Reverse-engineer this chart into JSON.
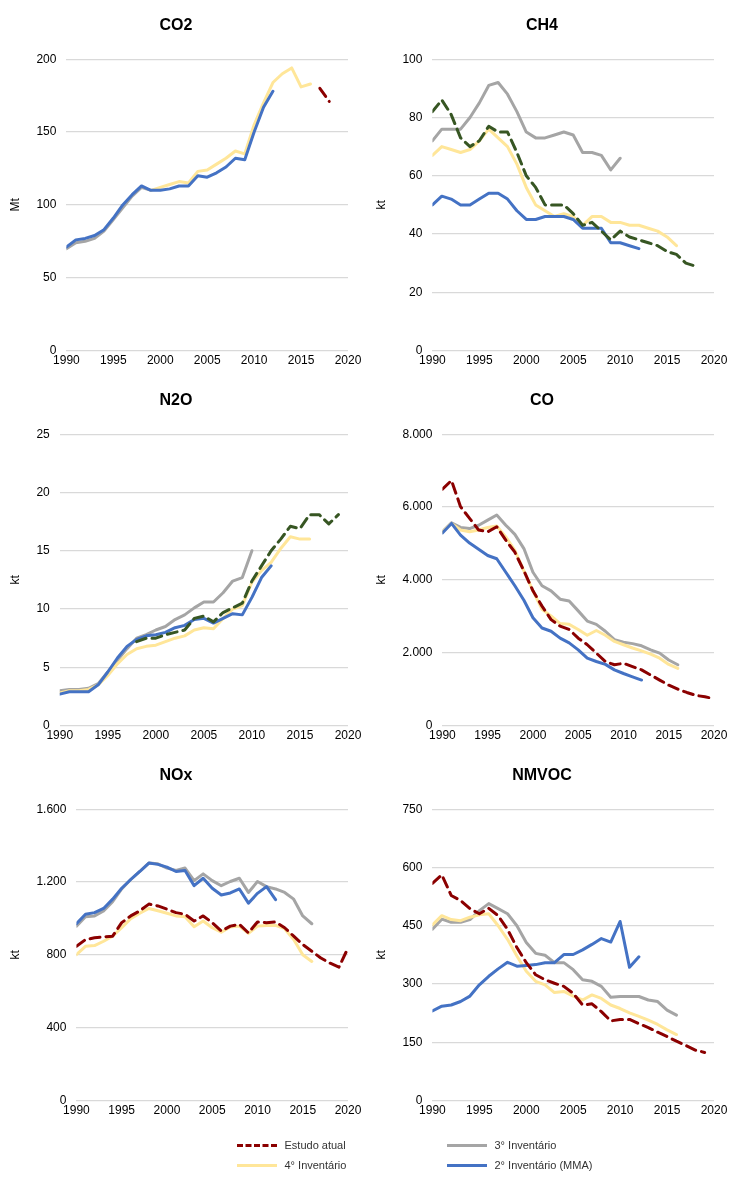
{
  "chart_data": [
    {
      "type": "line",
      "title": "CO2",
      "ylabel": "Mt",
      "x": [
        1990,
        1991,
        1992,
        1993,
        1994,
        1995,
        1996,
        1997,
        1998,
        1999,
        2000,
        2001,
        2002,
        2003,
        2004,
        2005,
        2006,
        2007,
        2008,
        2009,
        2010,
        2011,
        2012,
        2013,
        2014,
        2015,
        2016,
        2017,
        2018
      ],
      "xlim": [
        1990,
        2020
      ],
      "xticks": [
        1990,
        1995,
        2000,
        2005,
        2010,
        2015,
        2020
      ],
      "ylim": [
        0,
        200
      ],
      "yticks": [
        0,
        50,
        100,
        150,
        200
      ],
      "grid": "y",
      "marker": "none",
      "legend": false,
      "series": [
        {
          "color": "#8b0000",
          "line_style": "dashed",
          "values": [
            null,
            null,
            null,
            null,
            null,
            null,
            null,
            null,
            null,
            null,
            null,
            null,
            null,
            null,
            null,
            null,
            null,
            null,
            null,
            null,
            null,
            null,
            null,
            null,
            null,
            null,
            null,
            180,
            171
          ]
        },
        {
          "color": "#a5a5a5",
          "line_style": "solid",
          "values": [
            70,
            74,
            75,
            77,
            82,
            90,
            98,
            106,
            112,
            110,
            null,
            null,
            null,
            null,
            null,
            null,
            null,
            null,
            null,
            null,
            null,
            null,
            null,
            null,
            null,
            null,
            null,
            null,
            null
          ]
        },
        {
          "color": "#ffe699",
          "line_style": "solid",
          "values": [
            null,
            null,
            null,
            null,
            null,
            null,
            null,
            null,
            null,
            110,
            112,
            114,
            116,
            115,
            123,
            124,
            128,
            132,
            137,
            135,
            155,
            170,
            184,
            190,
            194,
            181,
            183,
            null,
            null
          ]
        },
        {
          "color": "#4472c4",
          "line_style": "solid",
          "values": [
            71,
            76,
            77,
            79,
            83,
            91,
            100,
            107,
            113,
            110,
            110,
            111,
            113,
            113,
            120,
            119,
            122,
            126,
            132,
            131,
            150,
            167,
            178,
            null,
            null,
            null,
            null,
            null,
            null
          ]
        }
      ]
    },
    {
      "type": "line",
      "title": "CH4",
      "ylabel": "kt",
      "x": [
        1990,
        1991,
        1992,
        1993,
        1994,
        1995,
        1996,
        1997,
        1998,
        1999,
        2000,
        2001,
        2002,
        2003,
        2004,
        2005,
        2006,
        2007,
        2008,
        2009,
        2010,
        2011,
        2012,
        2013,
        2014,
        2015,
        2016,
        2017,
        2018
      ],
      "xlim": [
        1990,
        2020
      ],
      "xticks": [
        1990,
        1995,
        2000,
        2005,
        2010,
        2015,
        2020
      ],
      "ylim": [
        0,
        100
      ],
      "yticks": [
        0,
        20,
        40,
        60,
        80,
        100
      ],
      "grid": "y",
      "marker": "none",
      "legend": false,
      "series": [
        {
          "color": "#375623",
          "line_style": "dashed",
          "values": [
            82,
            86,
            81,
            73,
            70,
            72,
            77,
            75,
            75,
            68,
            60,
            56,
            50,
            50,
            50,
            47,
            43,
            44,
            41,
            38,
            41,
            39,
            38,
            37,
            36,
            34,
            33,
            30,
            29
          ]
        },
        {
          "color": "#a5a5a5",
          "line_style": "solid",
          "values": [
            72,
            76,
            76,
            76,
            80,
            85,
            91,
            92,
            88,
            82,
            75,
            73,
            73,
            74,
            75,
            74,
            68,
            68,
            67,
            62,
            66,
            null,
            null,
            null,
            null,
            null,
            null,
            null,
            null
          ]
        },
        {
          "color": "#ffe699",
          "line_style": "solid",
          "values": [
            67,
            70,
            69,
            68,
            69,
            72,
            76,
            73,
            70,
            64,
            56,
            50,
            48,
            46,
            47,
            46,
            43,
            46,
            46,
            44,
            44,
            43,
            43,
            42,
            41,
            39,
            36,
            null,
            null
          ]
        },
        {
          "color": "#4472c4",
          "line_style": "solid",
          "values": [
            50,
            53,
            52,
            50,
            50,
            52,
            54,
            54,
            52,
            48,
            45,
            45,
            46,
            46,
            46,
            45,
            42,
            42,
            42,
            37,
            37,
            36,
            35,
            null,
            null,
            null,
            null,
            null,
            null
          ]
        }
      ]
    },
    {
      "type": "line",
      "title": "N2O",
      "ylabel": "kt",
      "x": [
        1990,
        1991,
        1992,
        1993,
        1994,
        1995,
        1996,
        1997,
        1998,
        1999,
        2000,
        2001,
        2002,
        2003,
        2004,
        2005,
        2006,
        2007,
        2008,
        2009,
        2010,
        2011,
        2012,
        2013,
        2014,
        2015,
        2016,
        2017,
        2018,
        2019
      ],
      "xlim": [
        1990,
        2020
      ],
      "xticks": [
        1990,
        1995,
        2000,
        2005,
        2010,
        2015,
        2020
      ],
      "ylim": [
        0,
        25
      ],
      "yticks": [
        0,
        5,
        10,
        15,
        20,
        25
      ],
      "grid": "y",
      "marker": "none",
      "legend": false,
      "series": [
        {
          "color": "#375623",
          "line_style": "dashed",
          "values": [
            null,
            null,
            null,
            null,
            null,
            null,
            null,
            null,
            7.2,
            7.5,
            7.5,
            7.8,
            8.0,
            8.2,
            9.2,
            9.4,
            8.9,
            9.7,
            10.1,
            10.5,
            12.4,
            13.7,
            15.0,
            16.0,
            17.1,
            16.9,
            18.1,
            18.1,
            17.3,
            18.1
          ]
        },
        {
          "color": "#a5a5a5",
          "line_style": "solid",
          "values": [
            3.0,
            3.1,
            3.1,
            3.2,
            3.6,
            4.6,
            5.6,
            6.6,
            7.5,
            7.8,
            8.2,
            8.5,
            9.1,
            9.5,
            10.1,
            10.6,
            10.6,
            11.4,
            12.4,
            12.7,
            15.0,
            null,
            null,
            null,
            null,
            null,
            null,
            null,
            null,
            null
          ]
        },
        {
          "color": "#ffe699",
          "line_style": "solid",
          "values": [
            2.8,
            3.0,
            3.0,
            3.1,
            3.5,
            4.3,
            5.3,
            6.1,
            6.6,
            6.8,
            6.9,
            7.2,
            7.5,
            7.7,
            8.2,
            8.4,
            8.3,
            9.2,
            10.0,
            10.3,
            12.3,
            13.3,
            14.0,
            15.2,
            16.2,
            16.0,
            16.0,
            null,
            null,
            null
          ]
        },
        {
          "color": "#4472c4",
          "line_style": "solid",
          "values": [
            2.7,
            2.9,
            2.9,
            2.9,
            3.5,
            4.6,
            5.8,
            6.8,
            7.4,
            7.7,
            7.8,
            8.0,
            8.4,
            8.6,
            9.1,
            9.2,
            8.8,
            9.2,
            9.6,
            9.5,
            11.0,
            12.7,
            13.7,
            null,
            null,
            null,
            null,
            null,
            null,
            null
          ]
        }
      ]
    },
    {
      "type": "line",
      "title": "CO",
      "ylabel": "kt",
      "x": [
        1990,
        1991,
        1992,
        1993,
        1994,
        1995,
        1996,
        1997,
        1998,
        1999,
        2000,
        2001,
        2002,
        2003,
        2004,
        2005,
        2006,
        2007,
        2008,
        2009,
        2010,
        2011,
        2012,
        2013,
        2014,
        2015,
        2016,
        2017,
        2018,
        2019,
        2020
      ],
      "xlim": [
        1990,
        2020
      ],
      "xticks": [
        1990,
        1995,
        2000,
        2005,
        2010,
        2015,
        2020
      ],
      "ylim": [
        0,
        8000
      ],
      "yticks": [
        0,
        {
          "value": 2000,
          "label": "2.000"
        },
        {
          "value": 4000,
          "label": "4.000"
        },
        {
          "value": 6000,
          "label": "6.000"
        },
        {
          "value": 8000,
          "label": "8.000"
        }
      ],
      "grid": "y",
      "marker": "none",
      "legend": false,
      "series": [
        {
          "color": "#8b0000",
          "line_style": "dashed",
          "values": [
            6490,
            6730,
            6010,
            5690,
            5370,
            5320,
            5460,
            5090,
            4760,
            4250,
            3700,
            3280,
            2910,
            2730,
            2640,
            2400,
            2220,
            1990,
            1760,
            1670,
            1710,
            1620,
            1530,
            1390,
            1250,
            1110,
            1000,
            910,
            830,
            790,
            740
          ]
        },
        {
          "color": "#a5a5a5",
          "line_style": "solid",
          "values": [
            5320,
            5570,
            5440,
            5410,
            5500,
            5640,
            5780,
            5500,
            5250,
            4860,
            4210,
            3840,
            3700,
            3470,
            3420,
            3150,
            2870,
            2780,
            2590,
            2360,
            2290,
            2250,
            2190,
            2080,
            1990,
            1800,
            1670,
            null,
            null,
            null,
            null
          ]
        },
        {
          "color": "#ffe699",
          "line_style": "solid",
          "values": [
            5320,
            5550,
            5370,
            5320,
            5370,
            5440,
            5480,
            5180,
            4810,
            4250,
            3700,
            3190,
            3010,
            2800,
            2780,
            2640,
            2480,
            2610,
            2480,
            2310,
            2220,
            2130,
            2050,
            1960,
            1850,
            1680,
            1570,
            null,
            null,
            null,
            null
          ]
        },
        {
          "color": "#4472c4",
          "line_style": "solid",
          "values": [
            5290,
            5550,
            5230,
            5010,
            4840,
            4670,
            4580,
            4210,
            3840,
            3440,
            2960,
            2680,
            2590,
            2400,
            2270,
            2080,
            1850,
            1760,
            1680,
            1530,
            1430,
            1340,
            1250,
            null,
            null,
            null,
            null,
            null,
            null,
            null,
            null
          ]
        }
      ]
    },
    {
      "type": "line",
      "title": "NOx",
      "ylabel": "kt",
      "x": [
        1990,
        1991,
        1992,
        1993,
        1994,
        1995,
        1996,
        1997,
        1998,
        1999,
        2000,
        2001,
        2002,
        2003,
        2004,
        2005,
        2006,
        2007,
        2008,
        2009,
        2010,
        2011,
        2012,
        2013,
        2014,
        2015,
        2016,
        2017,
        2018,
        2019,
        2020
      ],
      "xlim": [
        1990,
        2020
      ],
      "xticks": [
        1990,
        1995,
        2000,
        2005,
        2010,
        2015,
        2020
      ],
      "ylim": [
        0,
        1600
      ],
      "yticks": [
        0,
        400,
        800,
        {
          "value": 1200,
          "label": "1.200"
        },
        {
          "value": 1600,
          "label": "1.600"
        }
      ],
      "grid": "y",
      "marker": "none",
      "legend": false,
      "series": [
        {
          "color": "#8b0000",
          "line_style": "dashed",
          "values": [
            847,
            884,
            894,
            899,
            903,
            977,
            1014,
            1042,
            1079,
            1069,
            1051,
            1032,
            1023,
            986,
            1014,
            977,
            931,
            958,
            968,
            921,
            981,
            977,
            981,
            949,
            903,
            857,
            820,
            783,
            755,
            733,
            838
          ]
        },
        {
          "color": "#a5a5a5",
          "line_style": "solid",
          "values": [
            958,
            1010,
            1014,
            1042,
            1092,
            1162,
            1214,
            1258,
            1304,
            1300,
            1277,
            1264,
            1277,
            1208,
            1245,
            1208,
            1180,
            1203,
            1221,
            1143,
            1203,
            1175,
            1162,
            1143,
            1106,
            1014,
            971,
            null,
            null,
            null,
            null
          ]
        },
        {
          "color": "#ffe699",
          "line_style": "solid",
          "values": [
            801,
            847,
            851,
            875,
            903,
            949,
            999,
            1029,
            1055,
            1042,
            1029,
            1014,
            1010,
            955,
            986,
            949,
            925,
            953,
            958,
            918,
            958,
            962,
            962,
            944,
            884,
            801,
            764,
            null,
            null,
            null,
            null
          ]
        },
        {
          "color": "#4472c4",
          "line_style": "solid",
          "values": [
            971,
            1023,
            1032,
            1055,
            1106,
            1166,
            1214,
            1258,
            1304,
            1297,
            1282,
            1258,
            1264,
            1180,
            1221,
            1166,
            1129,
            1140,
            1162,
            1084,
            1138,
            1175,
            1103,
            null,
            null,
            null,
            null,
            null,
            null,
            null,
            null
          ]
        }
      ]
    },
    {
      "type": "line",
      "title": "NMVOC",
      "ylabel": "kt",
      "x": [
        1990,
        1991,
        1992,
        1993,
        1994,
        1995,
        1996,
        1997,
        1998,
        1999,
        2000,
        2001,
        2002,
        2003,
        2004,
        2005,
        2006,
        2007,
        2008,
        2009,
        2010,
        2011,
        2012,
        2013,
        2014,
        2015,
        2016,
        2017,
        2018,
        2019
      ],
      "xlim": [
        1990,
        2020
      ],
      "xticks": [
        1990,
        1995,
        2000,
        2005,
        2010,
        2015,
        2020
      ],
      "ylim": [
        0,
        750
      ],
      "yticks": [
        0,
        150,
        300,
        450,
        600,
        750
      ],
      "grid": "y",
      "marker": "none",
      "legend": "bottom",
      "series": [
        {
          "name": "Estudo atual",
          "color": "#8b0000",
          "line_style": "dashed",
          "values": [
            559,
            581,
            528,
            515,
            494,
            481,
            495,
            476,
            441,
            394,
            355,
            324,
            311,
            302,
            294,
            276,
            246,
            249,
            229,
            205,
            209,
            209,
            198,
            188,
            176,
            165,
            153,
            142,
            130,
            124
          ]
        },
        {
          "name": "3° Inventário",
          "color": "#a5a5a5",
          "line_style": "solid",
          "values": [
            441,
            467,
            459,
            459,
            466,
            489,
            507,
            494,
            481,
            450,
            407,
            379,
            374,
            355,
            355,
            337,
            311,
            307,
            294,
            266,
            268,
            268,
            268,
            259,
            255,
            233,
            220,
            null,
            null,
            null
          ]
        },
        {
          "name": "4° Inventário",
          "color": "#ffe699",
          "line_style": "solid",
          "values": [
            452,
            476,
            466,
            463,
            472,
            478,
            481,
            450,
            415,
            372,
            333,
            307,
            298,
            278,
            281,
            269,
            259,
            272,
            263,
            246,
            237,
            226,
            217,
            207,
            196,
            182,
            170,
            null,
            null,
            null
          ]
        },
        {
          "name": "2° Inventário (MMA)",
          "color": "#4472c4",
          "line_style": "solid",
          "values": [
            231,
            243,
            246,
            255,
            269,
            298,
            320,
            339,
            356,
            346,
            348,
            350,
            355,
            355,
            376,
            376,
            388,
            402,
            417,
            408,
            461,
            343,
            370,
            null,
            null,
            null,
            null,
            null,
            null,
            null
          ]
        }
      ]
    }
  ]
}
